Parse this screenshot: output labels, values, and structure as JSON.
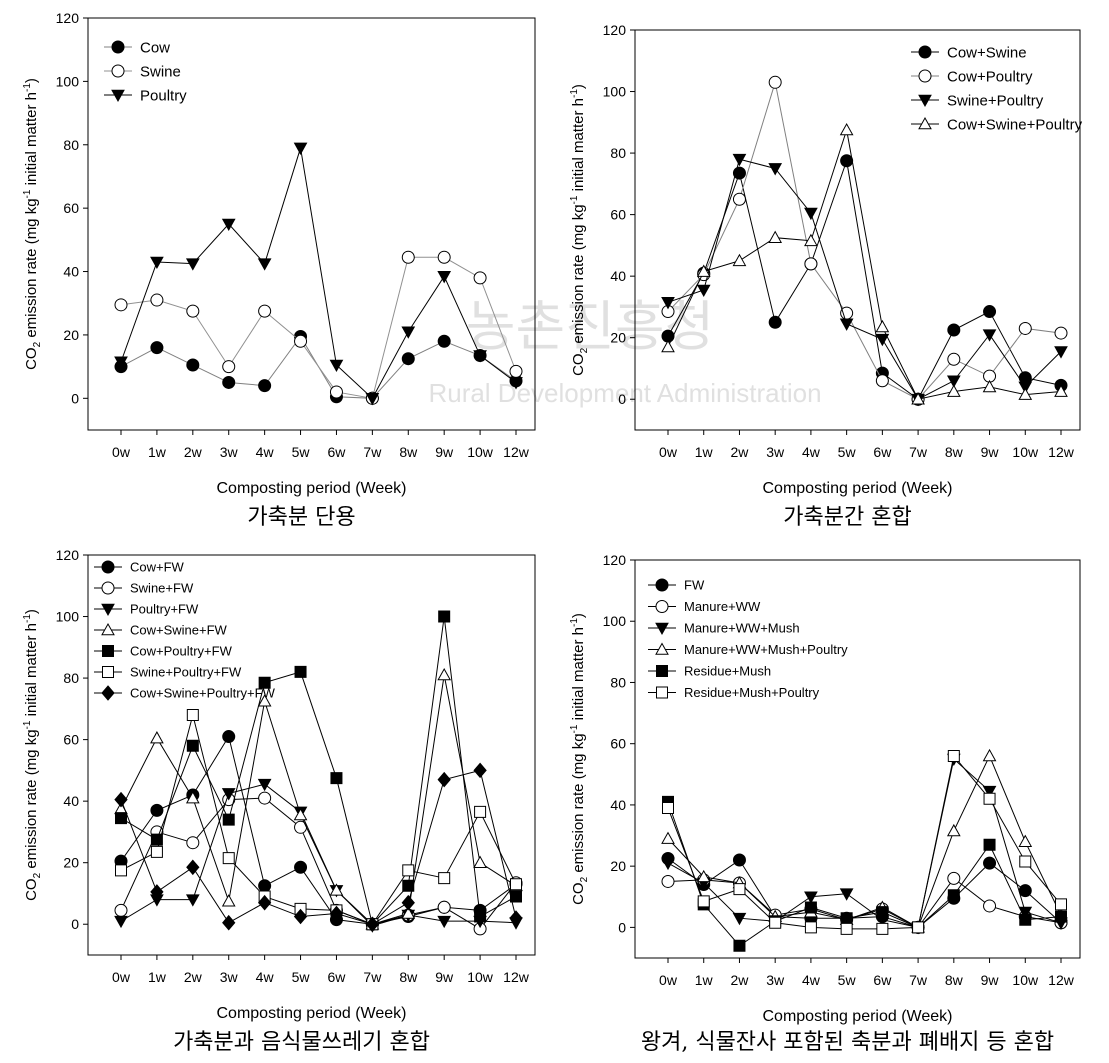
{
  "chart_data": [
    {
      "type": "line",
      "caption": "가축분 단용",
      "xlabel": "Composting period (Week)",
      "ylabel": [
        {
          "text": "CO"
        },
        {
          "text": "2",
          "shift": "sub"
        },
        {
          "text": " emission rate (mg kg"
        },
        {
          "text": "-1",
          "shift": "super"
        },
        {
          "text": " initial matter h"
        },
        {
          "text": "-1",
          "shift": "super"
        },
        {
          "text": ")"
        }
      ],
      "categories": [
        "0w",
        "1w",
        "2w",
        "3w",
        "4w",
        "5w",
        "6w",
        "7w",
        "8w",
        "9w",
        "10w",
        "12w"
      ],
      "ylim": [
        -10,
        120
      ],
      "yticks": [
        0,
        20,
        40,
        60,
        80,
        100,
        120
      ],
      "legend": "upper left",
      "series": [
        {
          "name": "Cow",
          "color": "#808080",
          "marker": "circle-filled",
          "values": [
            10,
            16,
            10.5,
            5,
            4,
            19.5,
            0.5,
            0,
            12.5,
            18,
            13.5,
            5.5
          ]
        },
        {
          "name": "Swine",
          "color": "#909090",
          "marker": "circle-open",
          "values": [
            29.5,
            31,
            27.5,
            10,
            27.5,
            18,
            2,
            0,
            44.5,
            44.5,
            38,
            8.5
          ]
        },
        {
          "name": "Poultry",
          "color": "#000000",
          "marker": "triangle-down-filled",
          "values": [
            11.5,
            43,
            42.5,
            55,
            42.5,
            79,
            10.5,
            0,
            21,
            38.5,
            13.5,
            5
          ]
        }
      ]
    },
    {
      "type": "line",
      "caption": "가축분간 혼합",
      "xlabel": "Composting period (Week)",
      "ylabel": [
        {
          "text": "CO"
        },
        {
          "text": "2",
          "shift": "sub"
        },
        {
          "text": " emission rate (mg kg"
        },
        {
          "text": "-1",
          "shift": "super"
        },
        {
          "text": " initial matter h"
        },
        {
          "text": "-1",
          "shift": "super"
        },
        {
          "text": ")"
        }
      ],
      "categories": [
        "0w",
        "1w",
        "2w",
        "3w",
        "4w",
        "5w",
        "6w",
        "7w",
        "8w",
        "9w",
        "10w",
        "12w"
      ],
      "ylim": [
        -10,
        120
      ],
      "yticks": [
        0,
        20,
        40,
        60,
        80,
        100,
        120
      ],
      "legend": "upper right",
      "series": [
        {
          "name": "Cow+Swine",
          "color": "#000000",
          "marker": "circle-filled",
          "values": [
            20.5,
            41,
            73.5,
            25,
            44,
            77.5,
            8.5,
            0,
            22.5,
            28.5,
            7,
            4.5
          ]
        },
        {
          "name": "Cow+Poultry",
          "color": "#808080",
          "marker": "circle-open",
          "values": [
            28.5,
            40.5,
            65,
            103,
            44,
            28,
            6,
            0,
            13,
            7.5,
            23,
            21.5
          ]
        },
        {
          "name": "Swine+Poultry",
          "color": "#000000",
          "marker": "triangle-down-filled",
          "values": [
            31.5,
            35.5,
            78,
            75,
            60.5,
            24.5,
            19.5,
            0,
            6,
            21,
            4,
            15.5
          ]
        },
        {
          "name": "Cow+Swine+Poultry",
          "color": "#000000",
          "marker": "triangle-up-open",
          "values": [
            17,
            41.5,
            45,
            52.5,
            51.5,
            87.5,
            23.5,
            0,
            2.5,
            4,
            1.5,
            2.5
          ]
        }
      ]
    },
    {
      "type": "line",
      "caption": "가축분과 음식물쓰레기 혼합",
      "xlabel": "Composting period (Week)",
      "ylabel": [
        {
          "text": "CO"
        },
        {
          "text": "2",
          "shift": "sub"
        },
        {
          "text": " emission rate (mg kg"
        },
        {
          "text": "-1",
          "shift": "super"
        },
        {
          "text": " initial matter h"
        },
        {
          "text": "-1",
          "shift": "super"
        },
        {
          "text": ")"
        }
      ],
      "categories": [
        "0w",
        "1w",
        "2w",
        "3w",
        "4w",
        "5w",
        "6w",
        "7w",
        "8w",
        "9w",
        "10w",
        "12w"
      ],
      "ylim": [
        -10,
        120
      ],
      "yticks": [
        0,
        20,
        40,
        60,
        80,
        100,
        120
      ],
      "legend": "upper left",
      "series": [
        {
          "name": "Cow+FW",
          "color": "#000000",
          "marker": "circle-filled",
          "values": [
            20.5,
            37,
            42,
            61,
            12.5,
            18.5,
            1.5,
            0,
            2.5,
            5.5,
            4.5,
            13
          ]
        },
        {
          "name": "Swine+FW",
          "color": "#000000",
          "marker": "circle-open",
          "values": [
            4.5,
            30,
            26.5,
            40.5,
            41,
            31.5,
            4.5,
            0,
            3,
            5.5,
            -1.5,
            13.5
          ]
        },
        {
          "name": "Poultry+FW",
          "color": "#000000",
          "marker": "triangle-down-filled",
          "values": [
            1,
            8,
            8,
            42.5,
            45.5,
            36.5,
            11,
            -0.5,
            3,
            1,
            1,
            0.5
          ]
        },
        {
          "name": "Cow+Swine+FW",
          "color": "#000000",
          "marker": "triangle-up-open",
          "values": [
            37.5,
            60.5,
            41,
            7.5,
            72.5,
            35.5,
            11,
            0,
            3.5,
            81,
            20,
            12.5
          ]
        },
        {
          "name": "Cow+Poultry+FW",
          "color": "#000000",
          "marker": "square-filled",
          "values": [
            34.5,
            27.5,
            58,
            34,
            78.5,
            82,
            47.5,
            0,
            12.5,
            100,
            2.5,
            9
          ]
        },
        {
          "name": "Swine+Poultry+FW",
          "color": "#000000",
          "marker": "square-open",
          "values": [
            17.5,
            23.5,
            68,
            21.5,
            9,
            5,
            4.5,
            0,
            17.5,
            15,
            36.5,
            13
          ]
        },
        {
          "name": "Cow+Swine+Poultry+FW",
          "color": "#000000",
          "marker": "diamond-filled",
          "values": [
            40.5,
            10.5,
            18.5,
            0.5,
            7,
            2.5,
            3.5,
            0,
            7,
            47,
            50,
            2
          ]
        }
      ]
    },
    {
      "type": "line",
      "caption": "왕겨, 식물잔사 포함된 축분과 폐배지 등 혼합",
      "xlabel": "Composting period (Week)",
      "ylabel": [
        {
          "text": "CO"
        },
        {
          "text": "2",
          "shift": "sub"
        },
        {
          "text": " emission rate (mg kg"
        },
        {
          "text": "-1",
          "shift": "super"
        },
        {
          "text": " initial matter h"
        },
        {
          "text": "-1",
          "shift": "super"
        },
        {
          "text": ")"
        }
      ],
      "categories": [
        "0w",
        "1w",
        "2w",
        "3w",
        "4w",
        "5w",
        "6w",
        "7w",
        "8w",
        "9w",
        "10w",
        "12w"
      ],
      "ylim": [
        -10,
        120
      ],
      "yticks": [
        0,
        20,
        40,
        60,
        80,
        100,
        120
      ],
      "legend": "upper left",
      "series": [
        {
          "name": "FW",
          "color": "#000000",
          "marker": "circle-filled",
          "values": [
            22.5,
            14,
            22,
            3.5,
            3,
            3,
            3.5,
            0,
            9.5,
            21,
            12,
            1.5
          ]
        },
        {
          "name": "Manure+WW",
          "color": "#000000",
          "marker": "circle-open",
          "values": [
            15,
            15.5,
            14.5,
            4,
            6,
            2.5,
            6,
            0,
            16,
            7,
            3.5,
            1.5
          ]
        },
        {
          "name": "Manure+WW+Mush",
          "color": "#000000",
          "marker": "triangle-down-filled",
          "values": [
            21,
            14.5,
            3,
            2,
            10,
            11,
            2.5,
            0,
            55,
            44.5,
            5,
            1.5
          ]
        },
        {
          "name": "Manure+WW+Mush+Poultry",
          "color": "#000000",
          "marker": "triangle-up-open",
          "values": [
            29,
            16.5,
            14.5,
            3.5,
            5,
            2.5,
            6.5,
            0,
            31.5,
            56,
            28,
            4
          ]
        },
        {
          "name": "Residue+Mush",
          "color": "#000000",
          "marker": "square-filled",
          "values": [
            41,
            7.5,
            -6,
            2,
            6.5,
            3,
            5,
            0,
            10.5,
            27,
            2.5,
            3.5
          ]
        },
        {
          "name": "Residue+Mush+Poultry",
          "color": "#000000",
          "marker": "square-open",
          "values": [
            39,
            8.5,
            12.5,
            1.5,
            0,
            -0.5,
            -0.5,
            0,
            56,
            42,
            21.5,
            7.5
          ]
        }
      ]
    }
  ],
  "watermark": {
    "title": "농촌진흥청",
    "subtitle": "Rural Development Administration"
  }
}
